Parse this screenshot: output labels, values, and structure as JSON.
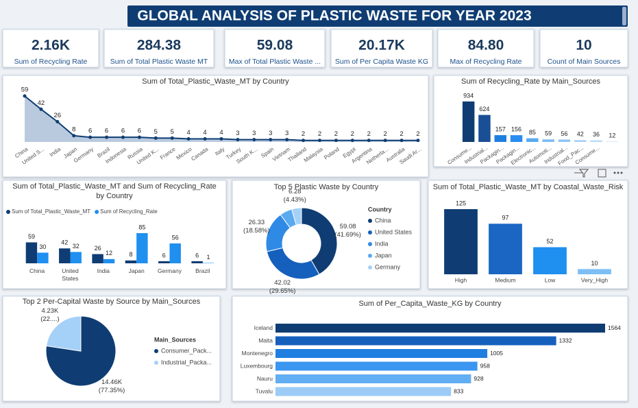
{
  "header": {
    "title": "GLOBAL ANALYSIS OF PLASTIC WASTE FOR YEAR 2023"
  },
  "cards": [
    {
      "value": "2.16K",
      "label": "Sum of Recycling Rate"
    },
    {
      "value": "284.38",
      "label": "Sum of Total Plastic Waste MT"
    },
    {
      "value": "59.08",
      "label": "Max of Total Plastic Waste ..."
    },
    {
      "value": "20.17K",
      "label": "Sum of Per Capita Waste KG"
    },
    {
      "value": "84.80",
      "label": "Max of Recycling Rate"
    },
    {
      "value": "10",
      "label": "Count of Main Sources"
    }
  ],
  "chart_data": [
    {
      "type": "area",
      "title": "Sum of Total_Plastic_Waste_MT by Country",
      "color": "#0f3d73",
      "fill": "#a9bdd6",
      "categories": [
        "China",
        "United S...",
        "India",
        "Japan",
        "Germany",
        "Brazil",
        "Indonesia",
        "Russia",
        "United K...",
        "France",
        "Mexico",
        "Canada",
        "Italy",
        "Turkey",
        "South K...",
        "Spain",
        "Vietnam",
        "Thailand",
        "Malaysia",
        "Poland",
        "Egypt",
        "Argentina",
        "Netherla...",
        "Australia",
        "Saudi Ar..."
      ],
      "values": [
        59,
        42,
        26,
        8,
        6,
        6,
        6,
        6,
        5,
        5,
        4,
        4,
        4,
        3,
        3,
        3,
        3,
        2,
        2,
        2,
        2,
        2,
        2,
        2,
        2
      ]
    },
    {
      "type": "bar",
      "title": "Sum of Recycling_Rate by Main_Sources",
      "categories": [
        "Consume...",
        "Industrial...",
        "Packagin...",
        "Packagin...",
        "Electronic...",
        "Automoti...",
        "Industrial...",
        "Food_Pac...",
        "Consume...",
        null
      ],
      "values": [
        934,
        624,
        157,
        156,
        85,
        59,
        56,
        42,
        36,
        12
      ],
      "colors": [
        "#0f3d73",
        "#1a4f95",
        "#1f7fe0",
        "#2a8cf0",
        "#5aaaf0",
        "#7fbcf3",
        "#8fc5f5",
        "#a5d0f7",
        "#b7d9f8",
        "#c9e2fa"
      ]
    },
    {
      "type": "grouped_bar",
      "title": "Sum of Total_Plastic_Waste_MT and Sum of Recycling_Rate by Country",
      "categories": [
        "China",
        "United States",
        "India",
        "Japan",
        "Germany",
        "Brazil"
      ],
      "series": [
        {
          "name": "Sum of Total_Plastic_Waste_MT",
          "color": "#0f3d73",
          "values": [
            59,
            42,
            26,
            8,
            6,
            6
          ]
        },
        {
          "name": "Sum of Recycling_Rate",
          "color": "#1f8ff0",
          "values": [
            30,
            32,
            12,
            85,
            56,
            1
          ]
        }
      ]
    },
    {
      "type": "donut",
      "title": "Top 5 Plastic Waste by Country",
      "legend_title": "Country",
      "categories": [
        "China",
        "United States",
        "India",
        "Japan",
        "Germany"
      ],
      "values": [
        59.08,
        42.02,
        26.33,
        8.0,
        6.28
      ],
      "value_labels": [
        "59.08 (41.69%)",
        "42.02 (29.65%)",
        "26.33 (18.58%)",
        null,
        "6.28 (4.43%)"
      ],
      "colors": [
        "#0f3d73",
        "#1560bd",
        "#2f8ae6",
        "#5aaaf0",
        "#a5d0f7"
      ]
    },
    {
      "type": "bar",
      "title": "Sum of Total_Plastic_Waste_MT by Coastal_Waste_Risk",
      "categories": [
        "High",
        "Medium",
        "Low",
        "Very_High"
      ],
      "values": [
        125,
        97,
        52,
        10
      ],
      "colors": [
        "#0f3d73",
        "#1a66c2",
        "#1f8ff0",
        "#7dbff5"
      ]
    },
    {
      "type": "pie",
      "title": "Top 2 Per-Capital Waste by Source by Main_Sources",
      "legend_title": "Main_Sources",
      "categories": [
        "Consumer_Pack...",
        "Industrial_Packa..."
      ],
      "values": [
        14460,
        4230
      ],
      "value_labels": [
        "14.46K (77.35%)",
        "4.23K (22....)"
      ],
      "colors": [
        "#0f3d73",
        "#a5d0f7"
      ]
    },
    {
      "type": "hbar",
      "title": "Sum of Per_Capita_Waste_KG by Country",
      "categories": [
        "Iceland",
        "Malta",
        "Montenegro",
        "Luxembourg",
        "Nauru",
        "Tuvalu"
      ],
      "values": [
        1564,
        1332,
        1005,
        958,
        928,
        833
      ],
      "colors": [
        "#0f3d73",
        "#1560bd",
        "#1f7fe0",
        "#3a96f0",
        "#62aef2",
        "#9ccbf6"
      ]
    }
  ]
}
